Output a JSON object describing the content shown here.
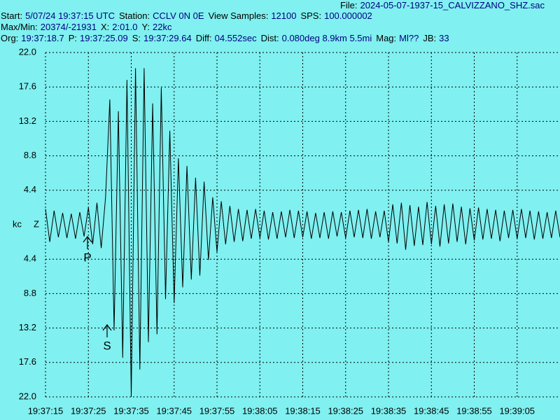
{
  "header": {
    "lines": [
      [
        {
          "label": "File:",
          "value": "2024-05-07-1937-15_CALVIZZANO_SHZ.sac"
        }
      ],
      [
        {
          "label": "Start:",
          "value": "5/07/24 19:37:15 UTC"
        },
        {
          "label": "Station:",
          "value": "CCLV 0N 0E"
        },
        {
          "label": "View Samples:",
          "value": "12100"
        },
        {
          "label": "SPS:",
          "value": "100.000002"
        }
      ],
      [
        {
          "label": "Max/Min:",
          "value": "20374/-21931"
        },
        {
          "label": "X:",
          "value": "2:01.0"
        },
        {
          "label": "Y:",
          "value": "22kc"
        }
      ],
      [
        {
          "label": "Org:",
          "value": "19:37:18.7"
        },
        {
          "label": "P:",
          "value": "19:37:25.09"
        },
        {
          "label": "S:",
          "value": "19:37:29.64"
        },
        {
          "label": "Diff:",
          "value": "04.552sec"
        },
        {
          "label": "Dist:",
          "value": "0.080deg 8.9km 5.5mi"
        },
        {
          "label": "Mag:",
          "value": "Ml??"
        },
        {
          "label": "JB:",
          "value": "33"
        }
      ]
    ]
  },
  "chart_data": {
    "type": "line",
    "y_unit": "kc",
    "channel": "Z",
    "color": "#000000",
    "grid": true,
    "annotations": [
      "P",
      "S"
    ],
    "x": [
      "19:37:15",
      "19:37:16",
      "19:37:17",
      "19:37:18",
      "19:37:19",
      "19:37:20",
      "19:37:21",
      "19:37:22",
      "19:37:23",
      "19:37:24",
      "19:37:25",
      "19:37:26",
      "19:37:27",
      "19:37:28",
      "19:37:29",
      "19:37:30",
      "19:37:31",
      "19:37:32",
      "19:37:33",
      "19:37:34",
      "19:37:35",
      "19:37:36",
      "19:37:37",
      "19:37:38",
      "19:37:39",
      "19:37:40",
      "19:37:41",
      "19:37:42",
      "19:37:43",
      "19:37:44",
      "19:37:45",
      "19:37:46",
      "19:37:47",
      "19:37:48",
      "19:37:49",
      "19:37:50",
      "19:37:51",
      "19:37:52",
      "19:37:53",
      "19:37:54",
      "19:37:55",
      "19:37:56",
      "19:37:57",
      "19:37:58",
      "19:37:59",
      "19:38:00",
      "19:38:01",
      "19:38:02",
      "19:38:03",
      "19:38:04",
      "19:38:05",
      "19:38:06",
      "19:38:07",
      "19:38:08",
      "19:38:09",
      "19:38:10",
      "19:38:11",
      "19:38:12",
      "19:38:13",
      "19:38:14",
      "19:38:15",
      "19:38:16",
      "19:38:17",
      "19:38:18",
      "19:38:19",
      "19:38:20",
      "19:38:21",
      "19:38:22",
      "19:38:23",
      "19:38:24",
      "19:38:25",
      "19:38:26",
      "19:38:27",
      "19:38:28",
      "19:38:29",
      "19:38:30",
      "19:38:31",
      "19:38:32",
      "19:38:33",
      "19:38:34",
      "19:38:35",
      "19:38:36",
      "19:38:37",
      "19:38:38",
      "19:38:39",
      "19:38:40",
      "19:38:41",
      "19:38:42",
      "19:38:43",
      "19:38:44",
      "19:38:45",
      "19:38:46",
      "19:38:47",
      "19:38:48",
      "19:38:49",
      "19:38:50",
      "19:38:51",
      "19:38:52",
      "19:38:53",
      "19:38:54",
      "19:38:55",
      "19:38:56",
      "19:38:57",
      "19:38:58",
      "19:38:59",
      "19:39:00",
      "19:39:01",
      "19:39:02",
      "19:39:03",
      "19:39:04",
      "19:39:05",
      "19:39:06",
      "19:39:07",
      "19:39:08",
      "19:39:09",
      "19:39:10",
      "19:39:11",
      "19:39:12",
      "19:39:13",
      "19:39:14",
      "19:39:15"
    ],
    "values": [
      2.0,
      -2.2,
      1.8,
      -1.6,
      1.5,
      -1.7,
      1.4,
      -1.8,
      1.6,
      -1.5,
      2.2,
      -2.5,
      2.8,
      -3.0,
      3.5,
      16.0,
      -13.5,
      14.5,
      -17.0,
      18.5,
      -22.0,
      20.0,
      -18.5,
      20.0,
      -15.0,
      15.5,
      -14.0,
      17.5,
      -9.5,
      12.0,
      -10.0,
      8.5,
      -8.0,
      7.5,
      -7.0,
      6.0,
      -6.5,
      5.5,
      -4.5,
      3.5,
      -3.5,
      3.0,
      -2.5,
      2.4,
      -2.2,
      2.0,
      -2.1,
      1.9,
      -1.8,
      2.0,
      -1.7,
      1.8,
      -1.9,
      1.6,
      -1.8,
      1.7,
      -1.6,
      1.9,
      -1.7,
      1.8,
      -1.6,
      1.7,
      -1.8,
      1.5,
      -1.7,
      1.6,
      -1.8,
      1.7,
      -1.5,
      1.6,
      -1.7,
      1.8,
      -1.6,
      1.9,
      -1.7,
      2.0,
      -1.8,
      1.7,
      -1.6,
      1.8,
      -2.2,
      2.6,
      -2.4,
      2.8,
      -3.2,
      2.5,
      -2.7,
      2.3,
      -2.6,
      2.9,
      -2.5,
      2.4,
      -2.8,
      2.6,
      -2.4,
      2.7,
      -2.2,
      2.3,
      -2.5,
      2.1,
      -2.0,
      2.2,
      -1.9,
      2.0,
      -1.8,
      1.9,
      -2.1,
      1.8,
      -1.7,
      1.9,
      -1.8,
      2.0,
      -1.7,
      1.8,
      -1.9,
      1.7,
      -1.8,
      1.6,
      -1.7,
      1.8,
      -1.6
    ],
    "xlim": [
      "19:37:15",
      "19:39:15"
    ],
    "xticks": [
      "19:37:15",
      "19:37:25",
      "19:37:35",
      "19:37:45",
      "19:37:55",
      "19:38:05",
      "19:38:15",
      "19:38:25",
      "19:38:35",
      "19:38:45",
      "19:38:55",
      "19:39:05"
    ],
    "ylim": [
      -22,
      22
    ],
    "yticks": [
      {
        "value": 22,
        "label": "22.0"
      },
      17.6,
      13.2,
      8.8,
      4.4,
      {
        "value": -4.4,
        "label": "4.4"
      },
      {
        "value": -8.8,
        "label": "8.8"
      },
      {
        "value": -13.2,
        "label": "13.2"
      },
      {
        "value": -17.6,
        "label": "17.6"
      },
      {
        "value": -22,
        "label": "22.0"
      }
    ]
  }
}
